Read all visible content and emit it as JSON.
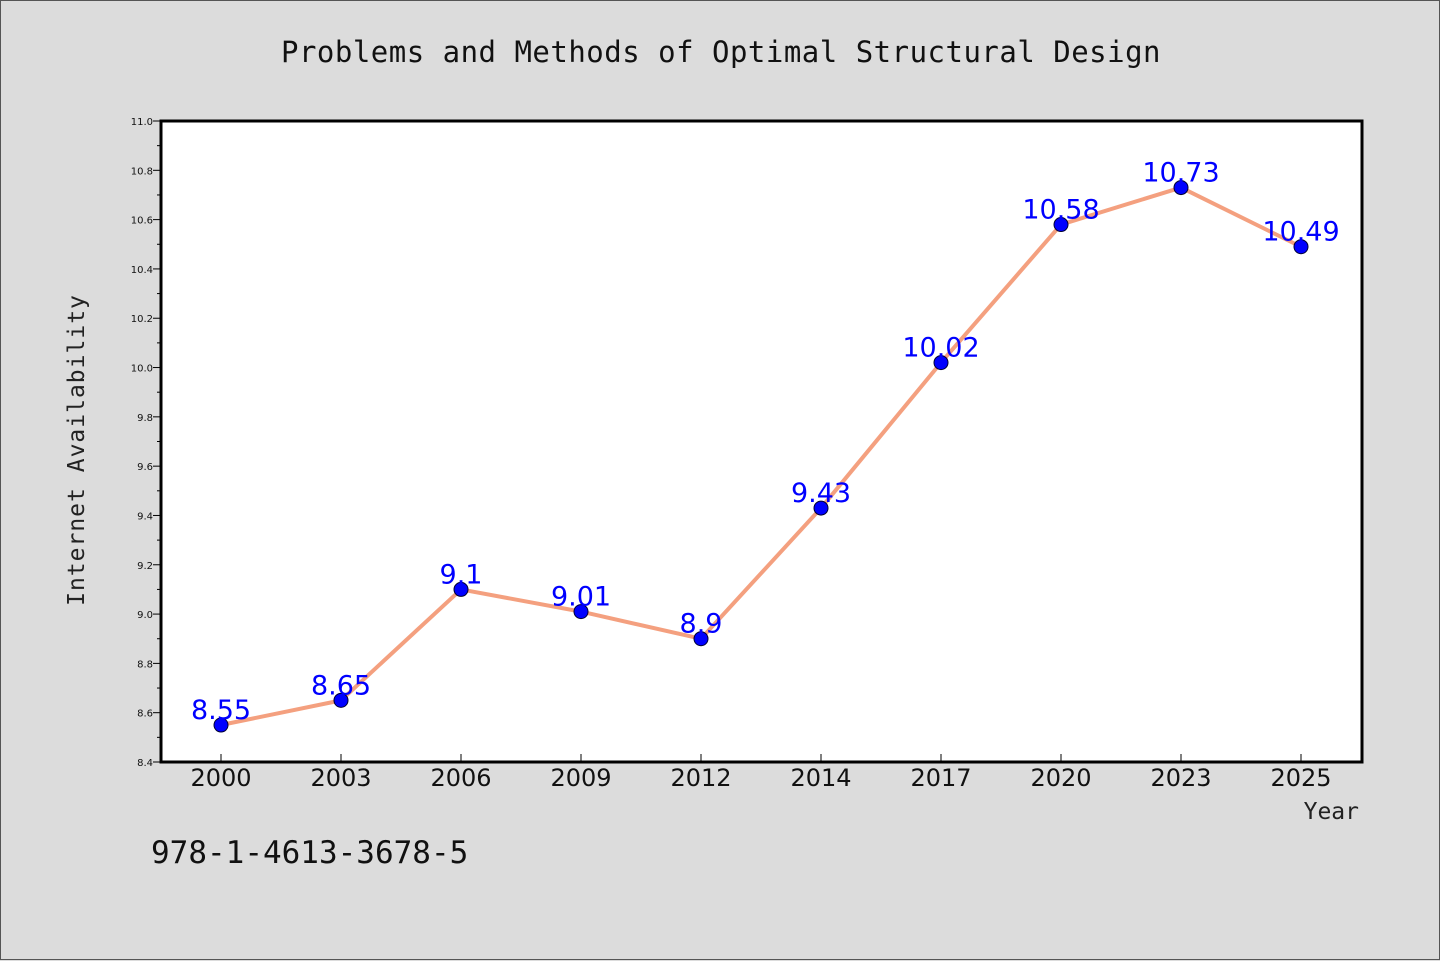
{
  "chart_data": {
    "type": "line",
    "title": "Problems and Methods of Optimal Structural Design",
    "xlabel": "Year",
    "ylabel": "Internet Availability",
    "categories": [
      "2000",
      "2003",
      "2006",
      "2009",
      "2012",
      "2014",
      "2017",
      "2020",
      "2023",
      "2025"
    ],
    "series": [
      {
        "values": [
          8.55,
          8.65,
          9.1,
          9.01,
          8.9,
          9.43,
          10.02,
          10.58,
          10.73,
          10.49
        ]
      }
    ],
    "data_labels": [
      "8.55",
      "8.65",
      "9.1",
      "9.01",
      "8.9",
      "9.43",
      "10.02",
      "10.58",
      "10.73",
      "10.49"
    ],
    "ylim": [
      8.4,
      11.0
    ],
    "yticks": [
      "8.4",
      "8.6",
      "8.8",
      "9.0",
      "9.2",
      "9.4",
      "9.6",
      "9.8",
      "10.0",
      "10.2",
      "10.4",
      "10.6",
      "10.8",
      "11.0"
    ],
    "grid": false,
    "legend": "none",
    "colors": {
      "line": "#f4a07f",
      "marker": "#0000ff",
      "data_label": "#0000ff",
      "background": "#dcdcdc",
      "plot_background": "#ffffff"
    }
  },
  "footer": {
    "isbn": "978-1-4613-3678-5"
  }
}
